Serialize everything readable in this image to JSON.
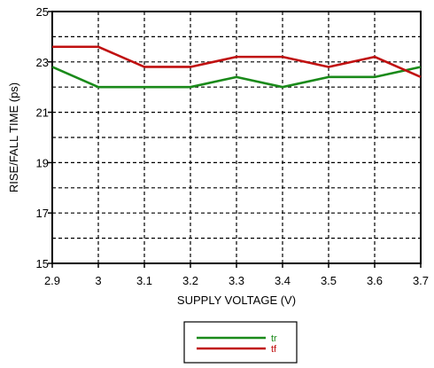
{
  "chart_data": {
    "type": "line",
    "title": "",
    "xlabel": "SUPPLY VOLTAGE (V)",
    "ylabel": "RISE/FALL TIME (ps)",
    "x": [
      2.9,
      3.0,
      3.1,
      3.2,
      3.3,
      3.4,
      3.5,
      3.6,
      3.7
    ],
    "x_tick_labels": [
      "2.9",
      "3",
      "3.1",
      "3.2",
      "3.3",
      "3.4",
      "3.5",
      "3.6",
      "3.7"
    ],
    "y_tick_labels": [
      "15",
      "17",
      "19",
      "21",
      "23",
      "25"
    ],
    "xlim": [
      2.9,
      3.7
    ],
    "ylim": [
      15,
      25
    ],
    "grid": "dashed",
    "legend_position": "bottom-center",
    "series": [
      {
        "name": "tr",
        "color": "#1a8a1a",
        "values": [
          22.8,
          22.0,
          22.0,
          22.0,
          22.4,
          22.0,
          22.4,
          22.4,
          22.8
        ]
      },
      {
        "name": "tf",
        "color": "#c01010",
        "values": [
          23.6,
          23.6,
          22.8,
          22.8,
          23.2,
          23.2,
          22.8,
          23.2,
          22.4
        ]
      }
    ]
  }
}
